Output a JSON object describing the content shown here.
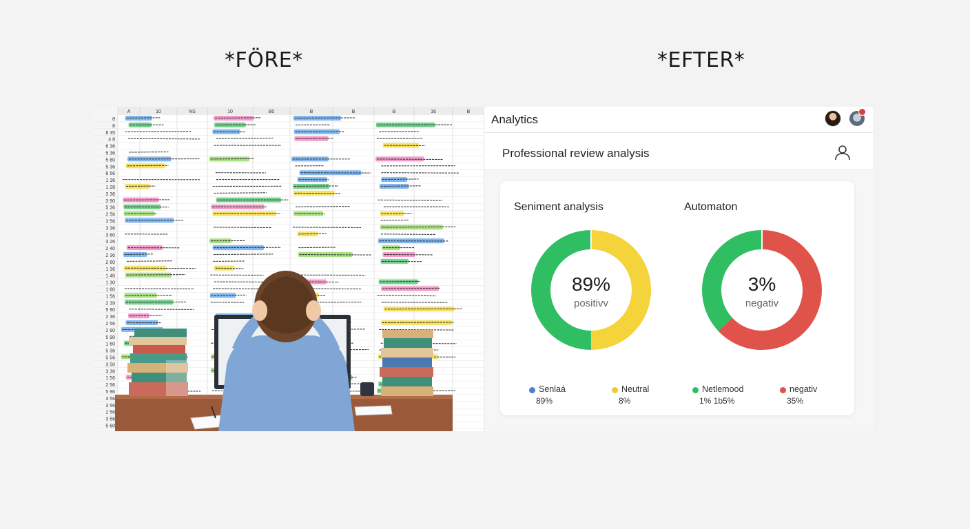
{
  "headings": {
    "before": "*FÖRE*",
    "after": "*EFTER*"
  },
  "spreadsheet": {
    "column_headers": [
      "A",
      "10",
      "NS",
      "10",
      "B0",
      "B",
      "B",
      "B",
      "16",
      "B"
    ],
    "row_labels": [
      "8",
      "8",
      "8 35",
      "4 8",
      "6 36",
      "5 36",
      "5 80",
      "5 36",
      "6 56",
      "1 36",
      "1 28",
      "3 36",
      "3 90",
      "5 36",
      "2 56",
      "3 56",
      "3 36",
      "3 60",
      "3 26",
      "2 40",
      "2 36",
      "2 60",
      "1 36",
      "1 40",
      "1 30",
      "1 80",
      "1 56",
      "2 39",
      "5 90",
      "2 36",
      "2 56",
      "2 90",
      "5 90",
      "1 60",
      "5 36",
      "5 56",
      "3 50",
      "3 36",
      "1 56",
      "2 56",
      "5 96",
      "3 56",
      "3 56",
      "2 56",
      "3 56",
      "5 60"
    ],
    "highlight_colors": [
      "#f5d832",
      "#8ed85a",
      "#5aa0e8",
      "#f07ab8",
      "#48c16a"
    ]
  },
  "dashboard": {
    "app_title": "Analytics",
    "page_title": "Professional review analysis",
    "icons": {
      "avatar": "profile-avatar",
      "notification_avatar": "notification-avatar",
      "user": "user-icon"
    },
    "card": {
      "sentiment_title": "Seniment analysis",
      "automation_title": "Automaton"
    },
    "donuts": [
      {
        "value": "89%",
        "label": "positivv",
        "segments": [
          {
            "color": "#f5d33b",
            "fraction": 0.5
          },
          {
            "color": "#2fbe62",
            "fraction": 0.5
          }
        ]
      },
      {
        "value": "3%",
        "label": "negativ",
        "segments": [
          {
            "color": "#e0534a",
            "fraction": 0.63
          },
          {
            "color": "#2fbe62",
            "fraction": 0.37
          }
        ]
      }
    ],
    "legend": [
      {
        "name": "Senlaá",
        "value": "89%",
        "color": "#4f7fd6"
      },
      {
        "name": "Neutral",
        "value": "8%",
        "color": "#f0c932"
      },
      {
        "name": "Netlemood",
        "value": "1% 1b5%",
        "color": "#2fbe62"
      },
      {
        "name": "negativ",
        "value": "35%",
        "color": "#e0534a"
      }
    ]
  }
}
